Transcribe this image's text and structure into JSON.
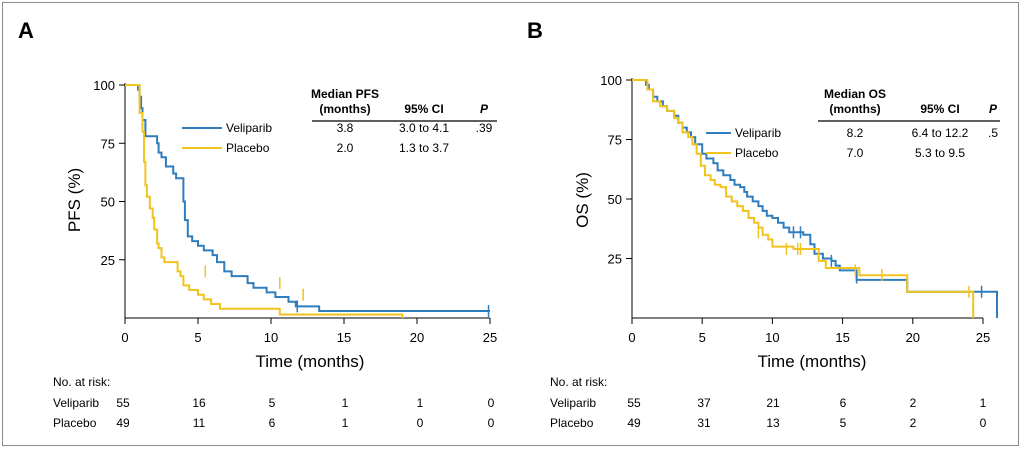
{
  "colors": {
    "veliparib": "#2f7dbd",
    "placebo": "#f1c31e",
    "axis": "#000000"
  },
  "chart_data": [
    {
      "type": "line",
      "panel": "A",
      "xlabel": "Time (months)",
      "ylabel": "PFS (%)",
      "xlim": [
        0,
        25
      ],
      "ylim": [
        0,
        100
      ],
      "xticks": [
        0,
        5,
        10,
        15,
        20,
        25
      ],
      "yticks": [
        25,
        50,
        75,
        100
      ],
      "series": [
        {
          "name": "Veliparib",
          "color": "#2f7dbd",
          "steps": [
            [
              0,
              100
            ],
            [
              0.8,
              100
            ],
            [
              0.9,
              98
            ],
            [
              1.0,
              95
            ],
            [
              1.1,
              90
            ],
            [
              1.2,
              85
            ],
            [
              1.4,
              78
            ],
            [
              2.0,
              78
            ],
            [
              2.2,
              75
            ],
            [
              2.3,
              71
            ],
            [
              2.5,
              69
            ],
            [
              2.8,
              65
            ],
            [
              3.3,
              62
            ],
            [
              3.5,
              60
            ],
            [
              3.9,
              60
            ],
            [
              4.0,
              50
            ],
            [
              4.1,
              42
            ],
            [
              4.3,
              35
            ],
            [
              4.6,
              33
            ],
            [
              5.0,
              31
            ],
            [
              5.4,
              29
            ],
            [
              6.0,
              27
            ],
            [
              6.3,
              24
            ],
            [
              6.8,
              20
            ],
            [
              7.3,
              18
            ],
            [
              8.3,
              18
            ],
            [
              8.4,
              15
            ],
            [
              8.8,
              13
            ],
            [
              9.7,
              11
            ],
            [
              10.3,
              9
            ],
            [
              11.2,
              7
            ],
            [
              11.7,
              5
            ],
            [
              13.2,
              5
            ],
            [
              13.3,
              3
            ],
            [
              25,
              3
            ]
          ],
          "censors": [
            [
              11.8,
              5
            ],
            [
              24.9,
              3
            ]
          ],
          "end_x": 25
        },
        {
          "name": "Placebo",
          "color": "#f1c31e",
          "steps": [
            [
              0,
              100
            ],
            [
              0.9,
              100
            ],
            [
              1.0,
              88
            ],
            [
              1.2,
              80
            ],
            [
              1.3,
              67
            ],
            [
              1.4,
              57
            ],
            [
              1.5,
              52
            ],
            [
              1.7,
              47
            ],
            [
              1.9,
              43
            ],
            [
              2.0,
              38
            ],
            [
              2.2,
              32
            ],
            [
              2.3,
              30
            ],
            [
              2.5,
              26
            ],
            [
              2.7,
              24
            ],
            [
              3.5,
              24
            ],
            [
              3.6,
              20
            ],
            [
              3.8,
              18
            ],
            [
              4.0,
              14
            ],
            [
              4.4,
              12
            ],
            [
              5.0,
              10
            ],
            [
              5.4,
              8
            ],
            [
              5.9,
              6
            ],
            [
              6.5,
              4
            ],
            [
              8.0,
              4
            ],
            [
              10.5,
              4
            ],
            [
              10.6,
              1.5
            ],
            [
              12.0,
              1.5
            ],
            [
              19.0,
              1.5
            ],
            [
              19.0,
              0
            ]
          ],
          "censors": [
            [
              10.6,
              15
            ],
            [
              12.2,
              10
            ],
            [
              5.5,
              20
            ]
          ],
          "end_x": 19
        }
      ],
      "legend": {
        "header": [
          "Median PFS\n(months)",
          "95% CI",
          "P"
        ],
        "rows": [
          [
            "Veliparib",
            "3.8",
            "3.0 to 4.1",
            ".39"
          ],
          [
            "Placebo",
            "2.0",
            "1.3 to 3.7",
            ""
          ]
        ]
      },
      "risk_table": {
        "title": "No. at risk:",
        "rows": [
          [
            "Veliparib",
            "55",
            "16",
            "5",
            "1",
            "1",
            "0"
          ],
          [
            "Placebo",
            "49",
            "11",
            "6",
            "1",
            "0",
            "0"
          ]
        ]
      }
    },
    {
      "type": "line",
      "panel": "B",
      "xlabel": "Time (months)",
      "ylabel": "OS (%)",
      "xlim": [
        0,
        26
      ],
      "ylim": [
        0,
        100
      ],
      "xticks": [
        0,
        5,
        10,
        15,
        20,
        25
      ],
      "yticks": [
        25,
        50,
        75,
        100
      ],
      "series": [
        {
          "name": "Veliparib",
          "color": "#2f7dbd",
          "steps": [
            [
              0,
              100
            ],
            [
              0.9,
              100
            ],
            [
              1.0,
              98
            ],
            [
              1.2,
              96
            ],
            [
              1.5,
              93
            ],
            [
              1.8,
              91
            ],
            [
              2.2,
              89
            ],
            [
              2.5,
              87
            ],
            [
              3.0,
              85
            ],
            [
              3.3,
              82
            ],
            [
              3.6,
              80
            ],
            [
              3.9,
              78
            ],
            [
              4.2,
              76
            ],
            [
              4.5,
              73
            ],
            [
              5.0,
              69
            ],
            [
              5.3,
              67
            ],
            [
              5.8,
              65
            ],
            [
              6.1,
              62
            ],
            [
              6.5,
              60
            ],
            [
              7.0,
              58
            ],
            [
              7.3,
              56
            ],
            [
              7.7,
              55
            ],
            [
              8.0,
              53
            ],
            [
              8.2,
              51
            ],
            [
              8.6,
              49
            ],
            [
              9.0,
              47
            ],
            [
              9.3,
              45
            ],
            [
              9.6,
              43
            ],
            [
              10.0,
              42
            ],
            [
              10.4,
              40
            ],
            [
              10.8,
              38
            ],
            [
              11.2,
              36
            ],
            [
              11.8,
              36
            ],
            [
              12.2,
              35
            ],
            [
              12.7,
              31
            ],
            [
              13.0,
              27
            ],
            [
              13.6,
              25
            ],
            [
              14.2,
              24
            ],
            [
              14.5,
              22
            ],
            [
              14.8,
              20
            ],
            [
              16.0,
              20
            ],
            [
              16.0,
              16
            ],
            [
              19.5,
              16
            ],
            [
              19.6,
              11
            ],
            [
              26,
              11
            ],
            [
              26,
              0
            ]
          ],
          "censors": [
            [
              11.5,
              36
            ],
            [
              12.0,
              36
            ],
            [
              14.2,
              24
            ],
            [
              16.0,
              17
            ],
            [
              24.9,
              11
            ]
          ],
          "end_x": 26
        },
        {
          "name": "Placebo",
          "color": "#f1c31e",
          "steps": [
            [
              0,
              100
            ],
            [
              0.9,
              100
            ],
            [
              1.1,
              96
            ],
            [
              1.5,
              91
            ],
            [
              2.0,
              89
            ],
            [
              2.5,
              87
            ],
            [
              3.0,
              84
            ],
            [
              3.3,
              82
            ],
            [
              3.6,
              78
            ],
            [
              4.0,
              76
            ],
            [
              4.3,
              73
            ],
            [
              4.6,
              69
            ],
            [
              4.9,
              64
            ],
            [
              5.2,
              60
            ],
            [
              5.6,
              58
            ],
            [
              5.9,
              56
            ],
            [
              6.3,
              55
            ],
            [
              6.7,
              51
            ],
            [
              7.1,
              49
            ],
            [
              7.5,
              47
            ],
            [
              7.9,
              45
            ],
            [
              8.3,
              42
            ],
            [
              8.7,
              40
            ],
            [
              9.0,
              38
            ],
            [
              9.3,
              35
            ],
            [
              9.7,
              33
            ],
            [
              10.0,
              30
            ],
            [
              11.4,
              30
            ],
            [
              11.5,
              29
            ],
            [
              13.0,
              29
            ],
            [
              13.3,
              24
            ],
            [
              13.8,
              21
            ],
            [
              16.0,
              21
            ],
            [
              16.2,
              18
            ],
            [
              18.5,
              18
            ],
            [
              19.5,
              18
            ],
            [
              19.6,
              11
            ],
            [
              24.3,
              11
            ],
            [
              24.3,
              0
            ]
          ],
          "censors": [
            [
              9.0,
              36
            ],
            [
              11.0,
              29
            ],
            [
              11.8,
              29
            ],
            [
              12.0,
              29
            ],
            [
              15.9,
              20
            ],
            [
              17.8,
              18
            ],
            [
              24.0,
              11
            ]
          ],
          "end_x": 24.3
        }
      ],
      "legend": {
        "header": [
          "Median OS\n(months)",
          "95% CI",
          "P"
        ],
        "rows": [
          [
            "Veliparib",
            "8.2",
            "6.4 to 12.2",
            ".5"
          ],
          [
            "Placebo",
            "7.0",
            "5.3 to 9.5",
            ""
          ]
        ]
      },
      "risk_table": {
        "title": "No. at risk:",
        "rows": [
          [
            "Veliparib",
            "55",
            "37",
            "21",
            "6",
            "2",
            "1"
          ],
          [
            "Placebo",
            "49",
            "31",
            "13",
            "5",
            "2",
            "0"
          ]
        ]
      }
    }
  ]
}
